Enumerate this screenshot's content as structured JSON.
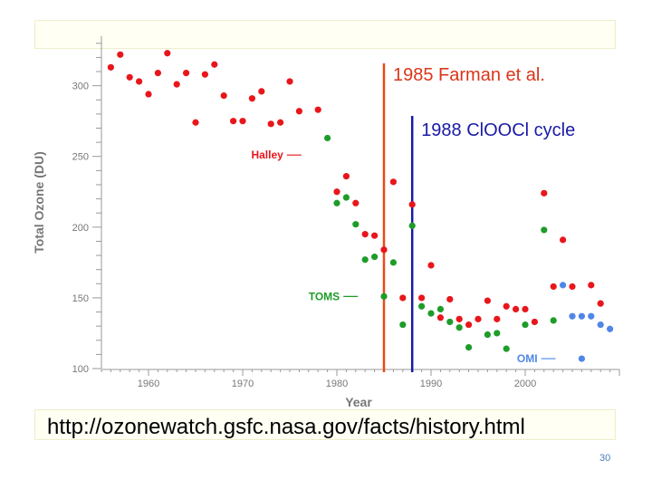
{
  "slide": {
    "url": "http://ozonewatch.gsfc.nasa.gov/facts/history.html",
    "page_number": "30"
  },
  "chart_data": {
    "type": "scatter",
    "xlabel": "Year",
    "ylabel": "Total Ozone (DU)",
    "xlim": [
      1955,
      2010
    ],
    "ylim": [
      100,
      335
    ],
    "xticks": [
      1960,
      1970,
      1980,
      1990,
      2000
    ],
    "yticks": [
      100,
      150,
      200,
      250,
      300
    ],
    "grid": false,
    "series": [
      {
        "name": "Halley",
        "color": "#e8161b",
        "points": [
          [
            1956,
            313
          ],
          [
            1957,
            322
          ],
          [
            1958,
            306
          ],
          [
            1959,
            303
          ],
          [
            1960,
            294
          ],
          [
            1961,
            309
          ],
          [
            1962,
            323
          ],
          [
            1963,
            301
          ],
          [
            1964,
            309
          ],
          [
            1965,
            274
          ],
          [
            1966,
            308
          ],
          [
            1967,
            315
          ],
          [
            1968,
            293
          ],
          [
            1969,
            275
          ],
          [
            1970,
            275
          ],
          [
            1971,
            291
          ],
          [
            1972,
            296
          ],
          [
            1973,
            273
          ],
          [
            1974,
            274
          ],
          [
            1975,
            303
          ],
          [
            1976,
            282
          ],
          [
            1978,
            283
          ],
          [
            1980,
            225
          ],
          [
            1981,
            236
          ],
          [
            1982,
            217
          ],
          [
            1983,
            195
          ],
          [
            1984,
            194
          ],
          [
            1985,
            184
          ],
          [
            1986,
            232
          ],
          [
            1987,
            150
          ],
          [
            1988,
            216
          ],
          [
            1989,
            150
          ],
          [
            1990,
            173
          ],
          [
            1991,
            136
          ],
          [
            1992,
            149
          ],
          [
            1993,
            135
          ],
          [
            1994,
            131
          ],
          [
            1995,
            135
          ],
          [
            1996,
            148
          ],
          [
            1997,
            135
          ],
          [
            1998,
            144
          ],
          [
            1999,
            142
          ],
          [
            2000,
            142
          ],
          [
            2001,
            133
          ],
          [
            2002,
            224
          ],
          [
            2003,
            158
          ],
          [
            2004,
            191
          ],
          [
            2005,
            158
          ],
          [
            2007,
            159
          ],
          [
            2008,
            146
          ]
        ]
      },
      {
        "name": "TOMS",
        "color": "#1e9c2a",
        "points": [
          [
            1979,
            263
          ],
          [
            1980,
            217
          ],
          [
            1981,
            221
          ],
          [
            1982,
            202
          ],
          [
            1983,
            177
          ],
          [
            1984,
            179
          ],
          [
            1985,
            151
          ],
          [
            1986,
            175
          ],
          [
            1987,
            131
          ],
          [
            1988,
            201
          ],
          [
            1989,
            144
          ],
          [
            1990,
            139
          ],
          [
            1991,
            142
          ],
          [
            1992,
            133
          ],
          [
            1993,
            129
          ],
          [
            1994,
            115
          ],
          [
            1996,
            124
          ],
          [
            1997,
            125
          ],
          [
            1998,
            114
          ],
          [
            2000,
            131
          ],
          [
            2002,
            198
          ],
          [
            2003,
            134
          ]
        ]
      },
      {
        "name": "OMI",
        "color": "#4f86e8",
        "points": [
          [
            2004,
            159
          ],
          [
            2005,
            137
          ],
          [
            2006,
            137
          ],
          [
            2007,
            137
          ],
          [
            2008,
            131
          ],
          [
            2009,
            128
          ],
          [
            2006,
            107
          ]
        ]
      }
    ],
    "series_labels": [
      {
        "text": "Halley",
        "x": 1977,
        "y": 251
      },
      {
        "text": "TOMS",
        "x": 1983,
        "y": 151
      },
      {
        "text": "OMI",
        "x": 2004,
        "y": 107
      }
    ],
    "annotations": [
      {
        "text": "1985 Farman et al.",
        "x": 1985,
        "color": "#d9361a"
      },
      {
        "text": "1988 ClOOCl cycle",
        "x": 1988,
        "color": "#1a1aa6"
      }
    ]
  }
}
